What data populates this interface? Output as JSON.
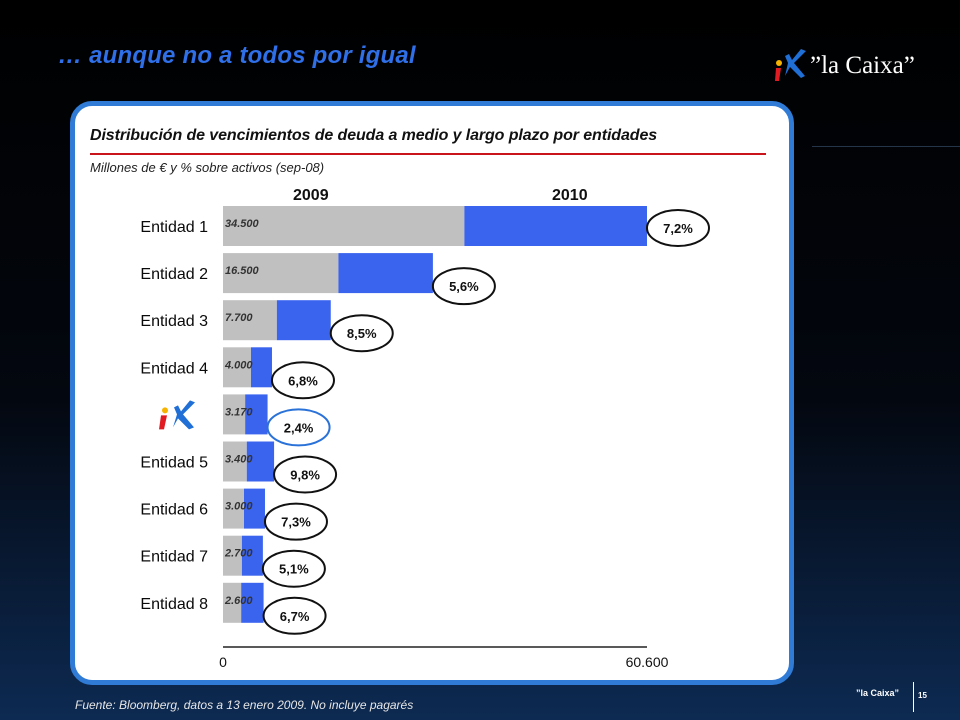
{
  "slide": {
    "title": "… aunque no a todos por igual",
    "logo_text": "”la Caixa”"
  },
  "colors": {
    "bar_2009": "#c0c0c0",
    "bar_2010": "#3a63ee",
    "highlight_ellipse": "#2a72d8",
    "panel_border": "#2f7bd6",
    "title_blue": "#2f6fe8",
    "underline_red": "#c9141c"
  },
  "chart_data": {
    "type": "bar",
    "orientation": "horizontal",
    "stacked": true,
    "title": "Distribución de vencimientos de deuda a medio y largo plazo por entidades",
    "subtitle": "Millones de € y % sobre activos (sep-08)",
    "series": [
      {
        "name": "2009",
        "values": [
          34500,
          16500,
          7700,
          4000,
          3170,
          3400,
          3000,
          2700,
          2600
        ]
      },
      {
        "name": "2010",
        "values": [
          26100,
          13500,
          7700,
          3000,
          3200,
          3900,
          3000,
          3000,
          3200
        ]
      }
    ],
    "categories": [
      "Entidad 1",
      "Entidad 2",
      "Entidad 3",
      "Entidad 4",
      "la Caixa",
      "Entidad 5",
      "Entidad 6",
      "Entidad 7",
      "Entidad 8"
    ],
    "category_display": [
      "Entidad 1",
      "Entidad 2",
      "Entidad 3",
      "Entidad 4",
      "",
      "Entidad 5",
      "Entidad 6",
      "Entidad 7",
      "Entidad 8"
    ],
    "logo_category_index": 4,
    "value_labels": [
      "34.500",
      "16.500",
      "7.700",
      "4.000",
      "3.170",
      "3.400",
      "3.000",
      "2.700",
      "2.600"
    ],
    "pct_labels": [
      "7,2%",
      "5,6%",
      "8,5%",
      "6,8%",
      "2,4%",
      "9,8%",
      "7,3%",
      "5,1%",
      "6,7%"
    ],
    "highlight_index": 4,
    "xlim": [
      0,
      60600
    ],
    "x_tick_labels": [
      "0",
      "60.600"
    ],
    "column_headers": [
      "2009",
      "2010"
    ],
    "grid": false
  },
  "footer": {
    "source": "Fuente: Bloomberg,  datos a 13 enero 2009. No incluye pagarés",
    "brand": "”la Caixa”",
    "page_number": "15"
  }
}
